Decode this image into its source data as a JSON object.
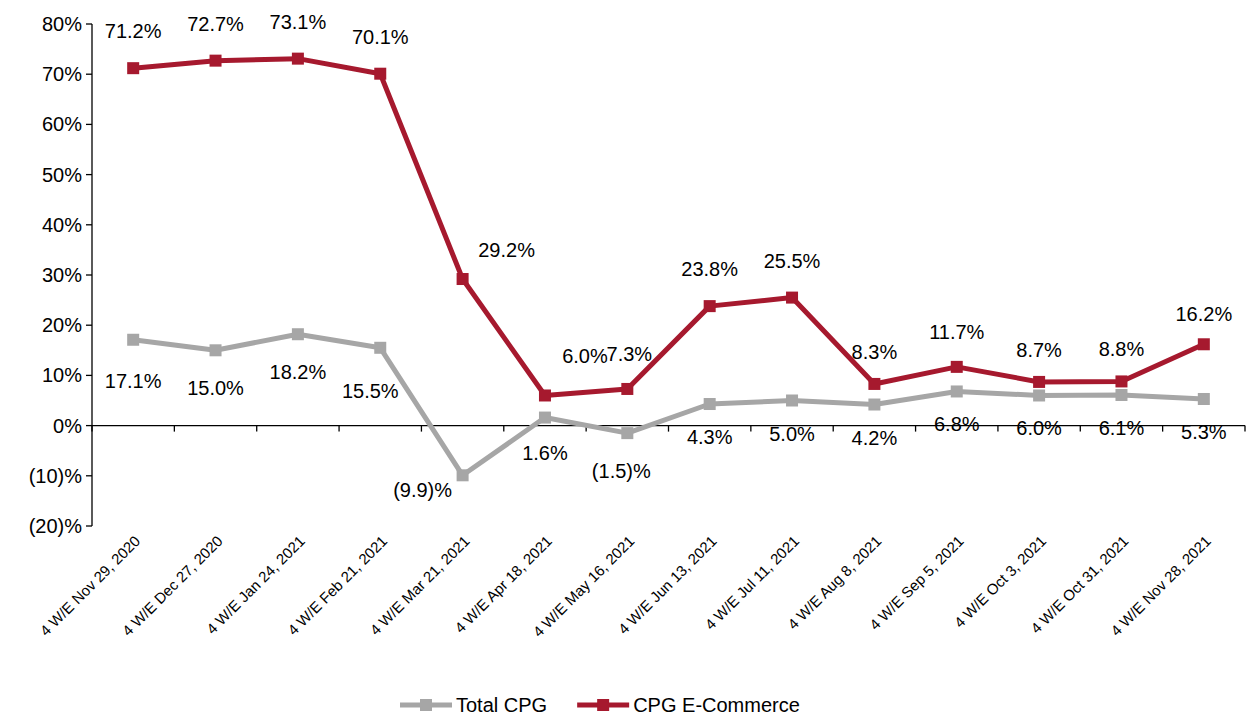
{
  "chart_data": {
    "type": "line",
    "categories": [
      "4 W/E Nov 29, 2020",
      "4 W/E Dec 27, 2020",
      "4 W/E Jan 24, 2021",
      "4 W/E Feb 21, 2021",
      "4 W/E Mar 21, 2021",
      "4 W/E Apr 18, 2021",
      "4 W/E May 16, 2021",
      "4 W/E Jun 13, 2021",
      "4 W/E Jul 11, 2021",
      "4 W/E Aug 8, 2021",
      "4 W/E Sep 5, 2021",
      "4 W/E Oct 3, 2021",
      "4 W/E Oct 31, 2021",
      "4 W/E Nov 28, 2021"
    ],
    "series": [
      {
        "name": "Total CPG",
        "color": "#a6a6a6",
        "marker": "square",
        "values": [
          17.1,
          15.0,
          18.2,
          15.5,
          -9.9,
          1.6,
          -1.5,
          4.3,
          5.0,
          4.2,
          6.8,
          6.0,
          6.1,
          5.3
        ],
        "value_labels": [
          "17.1%",
          "15.0%",
          "18.2%",
          "15.5%",
          "(9.9)%",
          "1.6%",
          "(1.5)%",
          "4.3%",
          "5.0%",
          "4.2%",
          "6.8%",
          "6.0%",
          "6.1%",
          "5.3%"
        ]
      },
      {
        "name": "CPG E-Commerce",
        "color": "#a6192e",
        "marker": "square",
        "values": [
          71.2,
          72.7,
          73.1,
          70.1,
          29.2,
          6.0,
          7.3,
          23.8,
          25.5,
          8.3,
          11.7,
          8.7,
          8.8,
          16.2
        ],
        "value_labels": [
          "71.2%",
          "72.7%",
          "73.1%",
          "70.1%",
          "29.2%",
          "6.0%",
          "7.3%",
          "23.8%",
          "25.5%",
          "8.3%",
          "11.7%",
          "8.7%",
          "8.8%",
          "16.2%"
        ]
      }
    ],
    "ylim": [
      -20,
      80
    ],
    "yticks": [
      {
        "value": -20,
        "label": "(20)%"
      },
      {
        "value": -10,
        "label": "(10)%"
      },
      {
        "value": 0,
        "label": "0%"
      },
      {
        "value": 10,
        "label": "10%"
      },
      {
        "value": 20,
        "label": "20%"
      },
      {
        "value": 30,
        "label": "30%"
      },
      {
        "value": 40,
        "label": "40%"
      },
      {
        "value": 50,
        "label": "50%"
      },
      {
        "value": 60,
        "label": "60%"
      },
      {
        "value": 70,
        "label": "70%"
      },
      {
        "value": 80,
        "label": "80%"
      }
    ],
    "grid": false,
    "legend": "bottom",
    "data_labels": true
  }
}
